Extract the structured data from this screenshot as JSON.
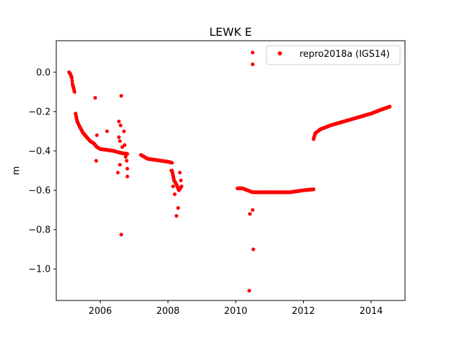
{
  "chart_data": {
    "type": "scatter",
    "title": "LEWK E",
    "xlabel": "",
    "ylabel": "m",
    "xlim": [
      2004.7,
      2015.0
    ],
    "ylim": [
      -1.16,
      0.16
    ],
    "xticks": [
      2006,
      2008,
      2010,
      2012,
      2014
    ],
    "xtick_labels": [
      "2006",
      "2008",
      "2010",
      "2012",
      "2014"
    ],
    "yticks": [
      0.0,
      -0.2,
      -0.4,
      -0.6,
      -0.8,
      -1.0
    ],
    "ytick_labels": [
      "0.0",
      "−0.2",
      "−0.4",
      "−0.6",
      "−0.8",
      "−1.0"
    ],
    "grid": false,
    "legend_position": "upper right",
    "series": [
      {
        "name": "repro2018a (IGS14)",
        "color": "#ff0000",
        "marker": "circle",
        "segments": [
          [
            [
              2005.08,
              0.0
            ],
            [
              2005.12,
              -0.01
            ],
            [
              2005.16,
              -0.03
            ],
            [
              2005.18,
              -0.06
            ],
            [
              2005.21,
              -0.08
            ],
            [
              2005.24,
              -0.1
            ]
          ],
          [
            [
              2005.27,
              -0.21
            ],
            [
              2005.32,
              -0.25
            ],
            [
              2005.4,
              -0.28
            ],
            [
              2005.5,
              -0.31
            ],
            [
              2005.6,
              -0.33
            ],
            [
              2005.7,
              -0.35
            ],
            [
              2005.8,
              -0.36
            ],
            [
              2005.9,
              -0.38
            ],
            [
              2006.0,
              -0.39
            ],
            [
              2006.2,
              -0.395
            ],
            [
              2006.4,
              -0.4
            ],
            [
              2006.6,
              -0.41
            ],
            [
              2006.8,
              -0.415
            ]
          ],
          [
            [
              2007.2,
              -0.42
            ],
            [
              2007.4,
              -0.44
            ],
            [
              2007.6,
              -0.445
            ],
            [
              2007.8,
              -0.45
            ],
            [
              2008.0,
              -0.455
            ],
            [
              2008.12,
              -0.46
            ]
          ],
          [
            [
              2008.12,
              -0.5
            ],
            [
              2008.18,
              -0.55
            ],
            [
              2008.25,
              -0.57
            ],
            [
              2008.32,
              -0.6
            ],
            [
              2008.4,
              -0.58
            ]
          ],
          [
            [
              2010.05,
              -0.59
            ],
            [
              2010.2,
              -0.59
            ],
            [
              2010.35,
              -0.6
            ],
            [
              2010.5,
              -0.61
            ],
            [
              2010.8,
              -0.61
            ],
            [
              2011.2,
              -0.61
            ],
            [
              2011.6,
              -0.61
            ],
            [
              2012.0,
              -0.6
            ],
            [
              2012.3,
              -0.595
            ]
          ],
          [
            [
              2012.3,
              -0.34
            ],
            [
              2012.35,
              -0.31
            ],
            [
              2012.5,
              -0.29
            ],
            [
              2012.8,
              -0.27
            ],
            [
              2013.2,
              -0.25
            ],
            [
              2013.6,
              -0.23
            ],
            [
              2014.0,
              -0.21
            ],
            [
              2014.3,
              -0.19
            ],
            [
              2014.55,
              -0.175
            ]
          ]
        ],
        "outliers": [
          [
            2005.85,
            -0.13
          ],
          [
            2005.9,
            -0.32
          ],
          [
            2006.2,
            -0.3
          ],
          [
            2005.88,
            -0.45
          ],
          [
            2006.55,
            -0.25
          ],
          [
            2006.6,
            -0.27
          ],
          [
            2006.62,
            -0.12
          ],
          [
            2006.55,
            -0.33
          ],
          [
            2006.58,
            -0.35
          ],
          [
            2006.65,
            -0.38
          ],
          [
            2006.7,
            -0.3
          ],
          [
            2006.72,
            -0.37
          ],
          [
            2006.75,
            -0.43
          ],
          [
            2006.78,
            -0.45
          ],
          [
            2006.58,
            -0.47
          ],
          [
            2006.52,
            -0.51
          ],
          [
            2006.8,
            -0.49
          ],
          [
            2006.8,
            -0.53
          ],
          [
            2006.62,
            -0.825
          ],
          [
            2008.1,
            -0.5
          ],
          [
            2008.15,
            -0.58
          ],
          [
            2008.2,
            -0.62
          ],
          [
            2008.25,
            -0.73
          ],
          [
            2008.3,
            -0.69
          ],
          [
            2008.35,
            -0.51
          ],
          [
            2008.38,
            -0.55
          ],
          [
            2010.5,
            0.1
          ],
          [
            2010.5,
            0.04
          ],
          [
            2010.42,
            -0.72
          ],
          [
            2010.5,
            -0.7
          ],
          [
            2010.52,
            -0.9
          ],
          [
            2010.4,
            -1.11
          ]
        ]
      }
    ]
  }
}
